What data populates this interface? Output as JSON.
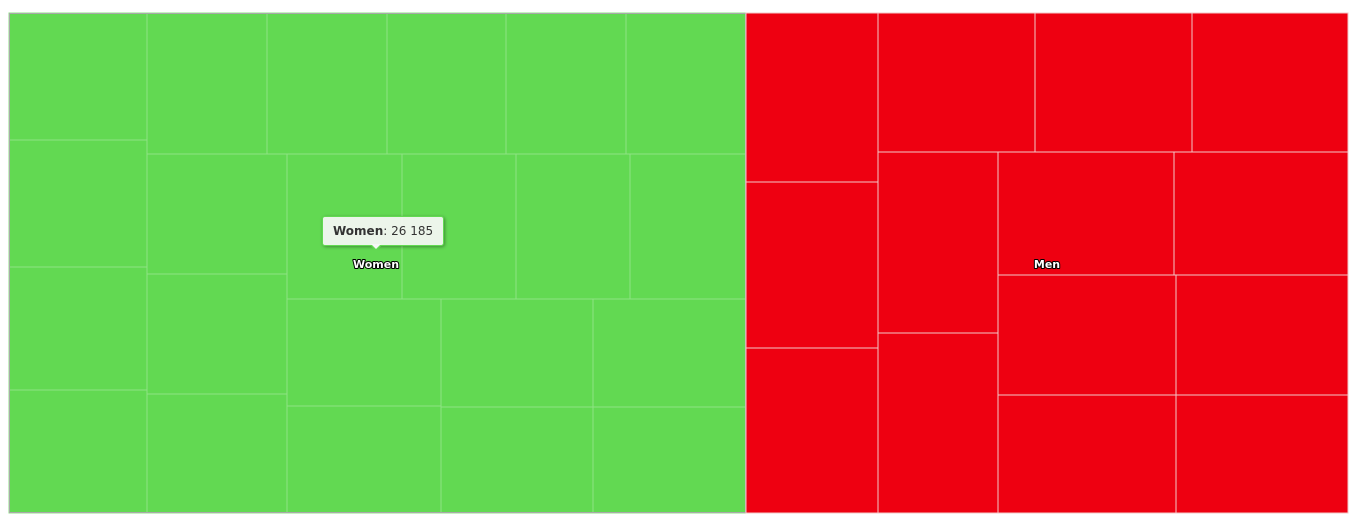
{
  "chart_data": {
    "type": "treemap",
    "title": "",
    "groups": [
      {
        "name": "Women",
        "color": "#62d952",
        "total": 26185,
        "leaf_count": 28
      },
      {
        "name": "Men",
        "color": "#ee0011",
        "total": null,
        "leaf_count": 19
      }
    ],
    "tooltip": {
      "name": "Women",
      "separator": ": ",
      "value": "26 185"
    }
  }
}
